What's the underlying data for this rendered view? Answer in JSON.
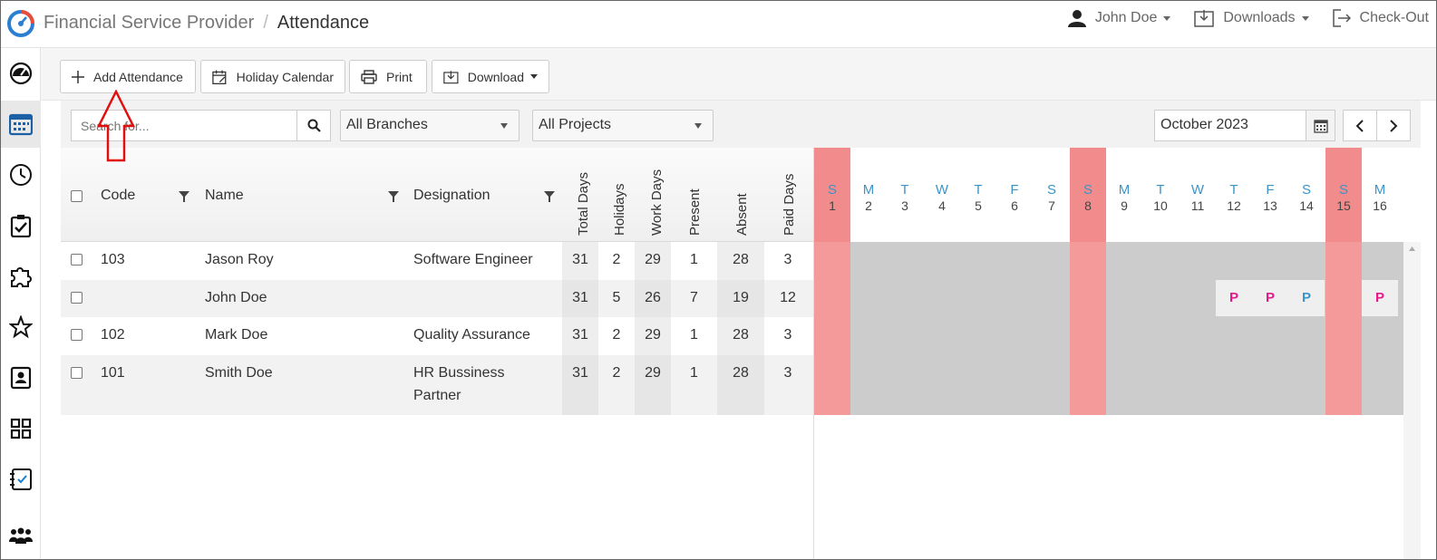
{
  "app": {
    "title": "Financial Service Provider",
    "page": "Attendance"
  },
  "user": {
    "name": "John Doe",
    "downloads": "Downloads",
    "checkout": "Check-Out"
  },
  "toolbar": {
    "add": "Add Attendance",
    "holiday": "Holiday Calendar",
    "print": "Print",
    "download": "Download"
  },
  "filters": {
    "search_placeholder": "Search for...",
    "branches": "All Branches",
    "projects": "All Projects",
    "month": "October 2023"
  },
  "columns": {
    "code": "Code",
    "name": "Name",
    "designation": "Designation",
    "total_days": "Total Days",
    "holidays": "Holidays",
    "work_days": "Work Days",
    "present": "Present",
    "absent": "Absent",
    "paid_days": "Paid Days"
  },
  "days": [
    {
      "l": "S",
      "n": "1"
    },
    {
      "l": "M",
      "n": "2"
    },
    {
      "l": "T",
      "n": "3"
    },
    {
      "l": "W",
      "n": "4"
    },
    {
      "l": "T",
      "n": "5"
    },
    {
      "l": "F",
      "n": "6"
    },
    {
      "l": "S",
      "n": "7"
    },
    {
      "l": "S",
      "n": "8"
    },
    {
      "l": "M",
      "n": "9"
    },
    {
      "l": "T",
      "n": "10"
    },
    {
      "l": "W",
      "n": "11"
    },
    {
      "l": "T",
      "n": "12"
    },
    {
      "l": "F",
      "n": "13"
    },
    {
      "l": "S",
      "n": "14"
    },
    {
      "l": "S",
      "n": "15"
    },
    {
      "l": "M",
      "n": "16"
    }
  ],
  "rows": [
    {
      "code": "103",
      "name": "Jason Roy",
      "designation": "Software Engineer",
      "designation2": "",
      "total": "31",
      "holidays": "2",
      "work": "29",
      "present": "1",
      "absent": "28",
      "paid": "3"
    },
    {
      "code": "",
      "name": "John Doe",
      "designation": "",
      "designation2": "",
      "total": "31",
      "holidays": "5",
      "work": "26",
      "present": "7",
      "absent": "19",
      "paid": "12"
    },
    {
      "code": "102",
      "name": "Mark Doe",
      "designation": "Quality Assurance",
      "designation2": "",
      "total": "31",
      "holidays": "2",
      "work": "29",
      "present": "1",
      "absent": "28",
      "paid": "3"
    },
    {
      "code": "101",
      "name": "Smith Doe",
      "designation": "HR Bussiness",
      "designation2": "Partner",
      "total": "31",
      "holidays": "2",
      "work": "29",
      "present": "1",
      "absent": "28",
      "paid": "3"
    }
  ],
  "marks": {
    "p12": "P",
    "p13": "P",
    "p14": "P",
    "p16": "P"
  },
  "colors": {
    "weekend": "#f59a9a",
    "present_pink": "#e6198a",
    "present_blue": "#3b95c8",
    "day_letter": "#3b95c8"
  }
}
